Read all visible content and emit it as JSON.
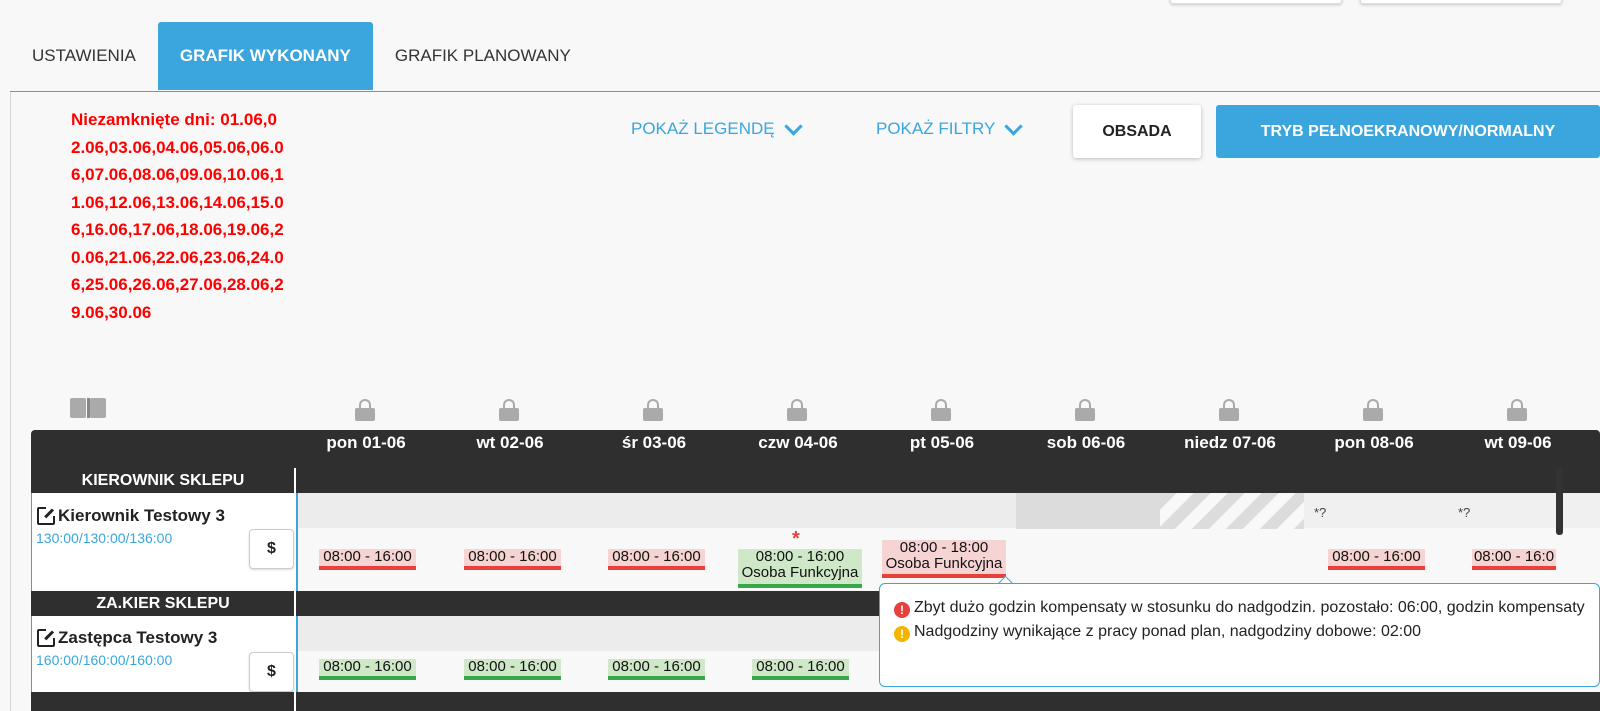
{
  "tabs": [
    "USTAWIENIA",
    "GRAFIK WYKONANY",
    "GRAFIK PLANOWANY"
  ],
  "unclosed_days": "Niezamknięte dni: 01.06,02.06,03.06,04.06,05.06,06.06,07.06,08.06,09.06,10.06,11.06,12.06,13.06,14.06,15.06,16.06,17.06,18.06,19.06,20.06,21.06,22.06,23.06,24.06,25.06,26.06,27.06,28.06,29.06,30.06",
  "toolbar": {
    "legend": "POKAŻ LEGENDĘ",
    "filters": "POKAŻ FILTRY",
    "staff": "OBSADA",
    "fullscreen": "TRYB PEŁNOEKRANOWY/NORMALNY"
  },
  "days": [
    "pon 01-06",
    "wt 02-06",
    "śr 03-06",
    "czw 04-06",
    "pt 05-06",
    "sob 06-06",
    "niedz 07-06",
    "pon 08-06",
    "wt 09-06"
  ],
  "sections": [
    {
      "title": "KIEROWNIK SKLEPU",
      "employee": {
        "name": "Kierownik Testowy 3",
        "hours": "130:00/130:00/136:00",
        "pay": "$",
        "shifts": [
          {
            "time": "08:00 - 16:00",
            "note": "",
            "status": "red"
          },
          {
            "time": "08:00 - 16:00",
            "note": "",
            "status": "red"
          },
          {
            "time": "08:00 - 16:00",
            "note": "",
            "status": "red"
          },
          {
            "time": "08:00 - 16:00",
            "note": "Osoba Funkcyjna",
            "status": "green"
          },
          {
            "time": "08:00 - 18:00",
            "note": "Osoba Funkcyjna",
            "status": "red"
          },
          null,
          null,
          {
            "time": "08:00 - 16:00",
            "note": "",
            "status": "red"
          },
          {
            "time": "08:00 - 16:0",
            "note": "",
            "status": "red"
          }
        ],
        "marker": "*",
        "unknown_marks": [
          "*?",
          "*?"
        ]
      }
    },
    {
      "title": "ZA.KIER SKLEPU",
      "employee": {
        "name": "Zastępca Testowy 3",
        "hours": "160:00/160:00/160:00",
        "pay": "$",
        "shifts": [
          {
            "time": "08:00 - 16:00",
            "status": "green"
          },
          {
            "time": "08:00 - 16:00",
            "status": "green"
          },
          {
            "time": "08:00 - 16:00",
            "status": "green"
          },
          {
            "time": "08:00 - 16:00",
            "status": "green"
          }
        ]
      }
    }
  ],
  "tooltip": {
    "line1": "Zbyt dużo godzin kompensaty w stosunku do nadgodzin. pozostało: 06:00, godzin kompensaty",
    "line2": "Nadgodziny wynikające z pracy ponad plan, nadgodziny dobowe: 02:00",
    "icon1": "!",
    "icon2": "!"
  },
  "colors": {
    "accent": "#3aa6dd",
    "error": "#e8413c",
    "ok": "#3aa64a",
    "warning": "#f5b400"
  }
}
